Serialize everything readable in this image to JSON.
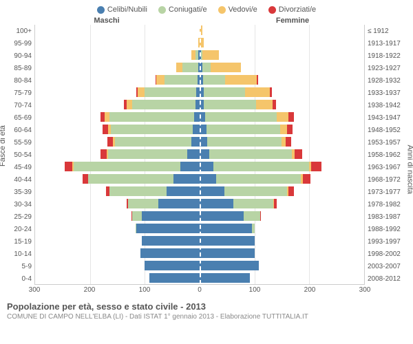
{
  "legend": [
    {
      "label": "Celibi/Nubili",
      "color": "#4a7fb0"
    },
    {
      "label": "Coniugati/e",
      "color": "#b8d4a5"
    },
    {
      "label": "Vedovi/e",
      "color": "#f5c56b"
    },
    {
      "label": "Divorziati/e",
      "color": "#d9383a"
    }
  ],
  "column_headers": {
    "male": "Maschi",
    "female": "Femmine"
  },
  "y_left_title": "Fasce di età",
  "y_right_title": "Anni di nascita",
  "age_labels": [
    "100+",
    "95-99",
    "90-94",
    "85-89",
    "80-84",
    "75-79",
    "70-74",
    "65-69",
    "60-64",
    "55-59",
    "50-54",
    "45-49",
    "40-44",
    "35-39",
    "30-34",
    "25-29",
    "20-24",
    "15-19",
    "10-14",
    "5-9",
    "0-4"
  ],
  "birth_labels": [
    "≤ 1912",
    "1913-1917",
    "1918-1922",
    "1923-1927",
    "1928-1932",
    "1933-1937",
    "1938-1942",
    "1943-1947",
    "1948-1952",
    "1953-1957",
    "1958-1962",
    "1963-1967",
    "1968-1972",
    "1973-1977",
    "1978-1982",
    "1983-1987",
    "1988-1992",
    "1993-1997",
    "1998-2002",
    "2003-2007",
    "2008-2012"
  ],
  "x_axis": {
    "max": 300,
    "ticks": [
      300,
      200,
      100,
      0,
      100,
      200,
      300
    ]
  },
  "rows": [
    {
      "m": {
        "c": 0,
        "g": 0,
        "v": 0,
        "d": 0
      },
      "f": {
        "c": 0,
        "g": 0,
        "v": 5,
        "d": 0
      }
    },
    {
      "m": {
        "c": 0,
        "g": 0,
        "v": 3,
        "d": 0
      },
      "f": {
        "c": 0,
        "g": 0,
        "v": 8,
        "d": 0
      }
    },
    {
      "m": {
        "c": 2,
        "g": 5,
        "v": 8,
        "d": 0
      },
      "f": {
        "c": 2,
        "g": 3,
        "v": 30,
        "d": 0
      }
    },
    {
      "m": {
        "c": 3,
        "g": 28,
        "v": 12,
        "d": 0
      },
      "f": {
        "c": 5,
        "g": 15,
        "v": 55,
        "d": 0
      }
    },
    {
      "m": {
        "c": 4,
        "g": 60,
        "v": 15,
        "d": 2
      },
      "f": {
        "c": 6,
        "g": 40,
        "v": 58,
        "d": 3
      }
    },
    {
      "m": {
        "c": 6,
        "g": 95,
        "v": 12,
        "d": 3
      },
      "f": {
        "c": 8,
        "g": 75,
        "v": 45,
        "d": 4
      }
    },
    {
      "m": {
        "c": 8,
        "g": 115,
        "v": 10,
        "d": 5
      },
      "f": {
        "c": 8,
        "g": 95,
        "v": 30,
        "d": 6
      }
    },
    {
      "m": {
        "c": 10,
        "g": 155,
        "v": 8,
        "d": 8
      },
      "f": {
        "c": 10,
        "g": 130,
        "v": 22,
        "d": 10
      }
    },
    {
      "m": {
        "c": 12,
        "g": 150,
        "v": 5,
        "d": 10
      },
      "f": {
        "c": 12,
        "g": 135,
        "v": 12,
        "d": 10
      }
    },
    {
      "m": {
        "c": 15,
        "g": 140,
        "v": 3,
        "d": 10
      },
      "f": {
        "c": 14,
        "g": 135,
        "v": 8,
        "d": 10
      }
    },
    {
      "m": {
        "c": 22,
        "g": 145,
        "v": 2,
        "d": 12
      },
      "f": {
        "c": 18,
        "g": 150,
        "v": 5,
        "d": 14
      }
    },
    {
      "m": {
        "c": 35,
        "g": 195,
        "v": 2,
        "d": 14
      },
      "f": {
        "c": 25,
        "g": 175,
        "v": 4,
        "d": 18
      }
    },
    {
      "m": {
        "c": 48,
        "g": 155,
        "v": 1,
        "d": 10
      },
      "f": {
        "c": 30,
        "g": 155,
        "v": 3,
        "d": 14
      }
    },
    {
      "m": {
        "c": 60,
        "g": 105,
        "v": 0,
        "d": 6
      },
      "f": {
        "c": 45,
        "g": 115,
        "v": 2,
        "d": 10
      }
    },
    {
      "m": {
        "c": 75,
        "g": 55,
        "v": 0,
        "d": 3
      },
      "f": {
        "c": 62,
        "g": 72,
        "v": 1,
        "d": 6
      }
    },
    {
      "m": {
        "c": 105,
        "g": 18,
        "v": 0,
        "d": 1
      },
      "f": {
        "c": 80,
        "g": 30,
        "v": 0,
        "d": 2
      }
    },
    {
      "m": {
        "c": 115,
        "g": 2,
        "v": 0,
        "d": 0
      },
      "f": {
        "c": 95,
        "g": 5,
        "v": 0,
        "d": 0
      }
    },
    {
      "m": {
        "c": 105,
        "g": 0,
        "v": 0,
        "d": 0
      },
      "f": {
        "c": 100,
        "g": 0,
        "v": 0,
        "d": 0
      }
    },
    {
      "m": {
        "c": 108,
        "g": 0,
        "v": 0,
        "d": 0
      },
      "f": {
        "c": 100,
        "g": 0,
        "v": 0,
        "d": 0
      }
    },
    {
      "m": {
        "c": 100,
        "g": 0,
        "v": 0,
        "d": 0
      },
      "f": {
        "c": 108,
        "g": 0,
        "v": 0,
        "d": 0
      }
    },
    {
      "m": {
        "c": 92,
        "g": 0,
        "v": 0,
        "d": 0
      },
      "f": {
        "c": 92,
        "g": 0,
        "v": 0,
        "d": 0
      }
    }
  ],
  "footer": {
    "title": "Popolazione per età, sesso e stato civile - 2013",
    "sub": "COMUNE DI CAMPO NELL'ELBA (LI) - Dati ISTAT 1° gennaio 2013 - Elaborazione TUTTITALIA.IT"
  },
  "colors": {
    "celibi": "#4a7fb0",
    "coniugati": "#b8d4a5",
    "vedovi": "#f5c56b",
    "divorziati": "#d9383a",
    "grid": "#e5e5e5",
    "background": "#ffffff"
  }
}
